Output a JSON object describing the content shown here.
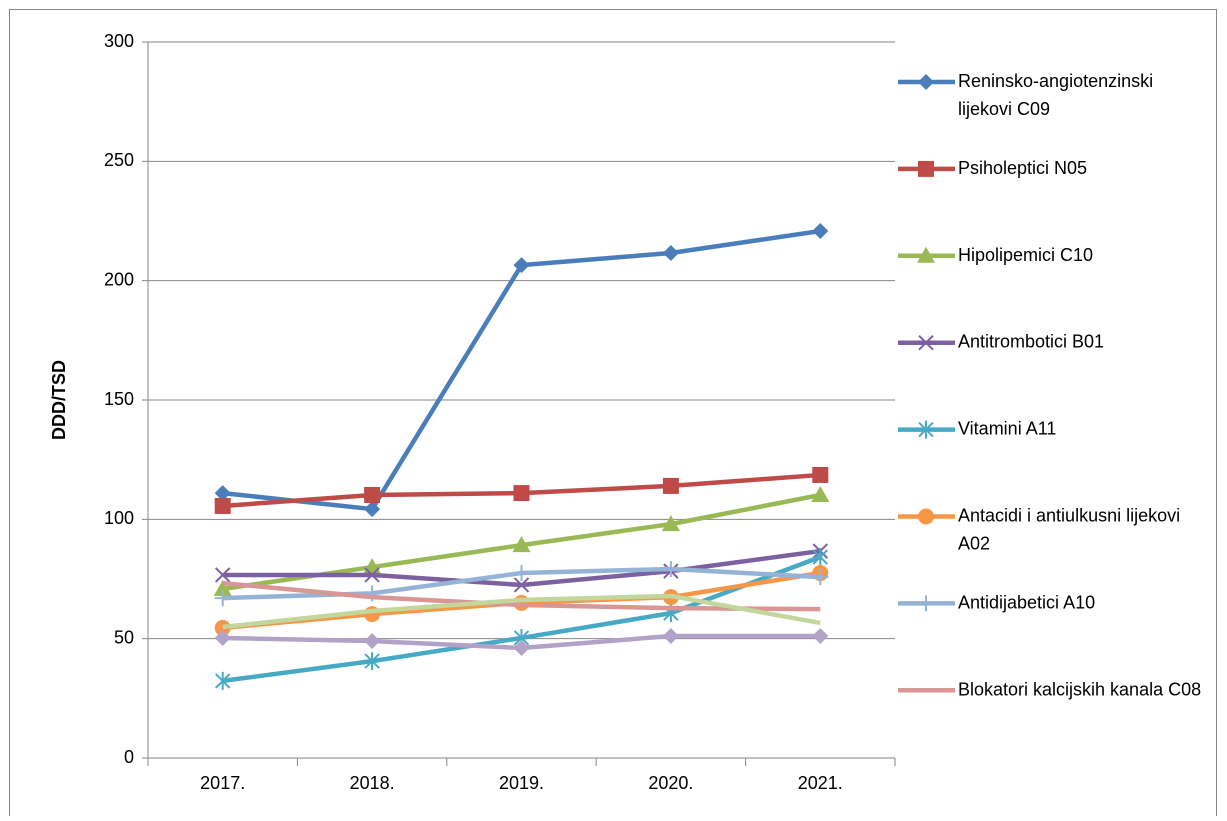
{
  "chart_data": {
    "type": "line",
    "y_label": "DDD/TSD",
    "categories": [
      "2017.",
      "2018.",
      "2019.",
      "2020.",
      "2021."
    ],
    "ylim": [
      0,
      300
    ],
    "yticks": [
      0,
      50,
      100,
      150,
      200,
      250,
      300
    ],
    "grid": true,
    "legend": "right",
    "series": [
      {
        "name": "Reninsko-angiotenzinski lijekovi C09",
        "color": "#4a7ebb",
        "marker": "diamond",
        "values": [
          111,
          104.3,
          206.5,
          211.6,
          220.8
        ]
      },
      {
        "name": "Psiholeptici N05",
        "color": "#be4b48",
        "marker": "square",
        "values": [
          105.6,
          110.2,
          111,
          114,
          118.6
        ]
      },
      {
        "name": "Hipolipemici C10",
        "color": "#98b954",
        "marker": "triangle",
        "values": [
          70.8,
          80,
          89.2,
          98,
          110.2
        ]
      },
      {
        "name": "Antitrombotici B01",
        "color": "#7d60a0",
        "marker": "x",
        "values": [
          76.7,
          76.7,
          72.5,
          78.3,
          86.7
        ]
      },
      {
        "name": "Vitamini A11",
        "color": "#46aac5",
        "marker": "star",
        "values": [
          32.3,
          40.6,
          50.3,
          60.7,
          84.2
        ]
      },
      {
        "name": "Antacidi i antiulkusni lijekovi A02",
        "color": "#f79646",
        "marker": "circle",
        "values": [
          54.5,
          60.3,
          65,
          67.4,
          77.5
        ]
      },
      {
        "name": "Antidijabetici A10",
        "color": "#95b3d7",
        "marker": "plus",
        "values": [
          67,
          69,
          77.5,
          79.2,
          75.8
        ]
      },
      {
        "name": "Blokatori kalcijskih kanala C08",
        "color": "#d99694",
        "marker": "none",
        "values": [
          73.3,
          67.4,
          64.1,
          62.8,
          62.4
        ]
      },
      {
        "color": "#c3d69b",
        "marker": "none",
        "values": [
          54.9,
          61.6,
          66.2,
          67.9,
          56.6
        ]
      },
      {
        "color": "#b3a2c7",
        "marker": "diamond",
        "values": [
          50.3,
          49,
          46.1,
          51.1,
          51.1
        ]
      }
    ]
  }
}
